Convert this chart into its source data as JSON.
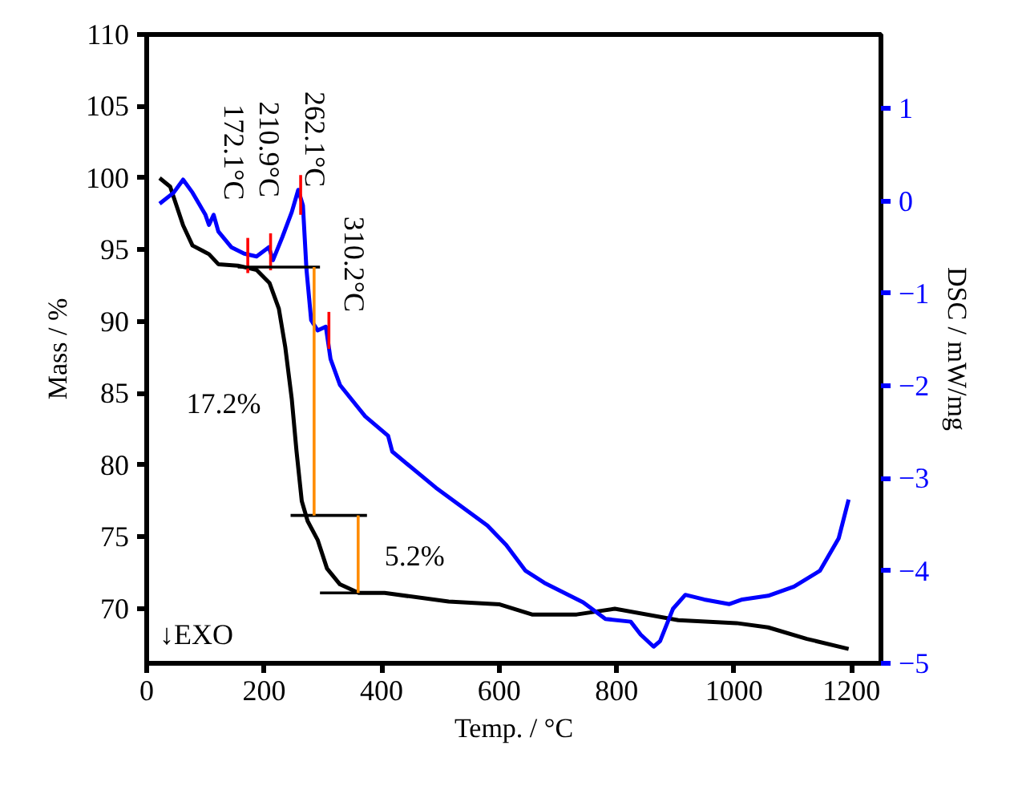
{
  "chart_data": {
    "type": "line",
    "xlabel": "Temp. / °C",
    "ylabel": "Mass / %",
    "y2label": "DSC / mW/mg",
    "xlim": [
      0,
      1250
    ],
    "xticks": [
      0,
      200,
      400,
      600,
      800,
      1000,
      1200
    ],
    "ylim": [
      66.2,
      110
    ],
    "yticks": [
      70,
      75,
      80,
      85,
      90,
      95,
      100,
      105,
      110
    ],
    "y2lim": [
      -5,
      1.8
    ],
    "y2ticks": [
      -5,
      -4,
      -3,
      -2,
      -1,
      0,
      1
    ],
    "grid": false,
    "marker": "none",
    "line_style": "solid",
    "series": [
      {
        "color": "#000000",
        "x": [
          22,
          40,
          62,
          78,
          106,
          122,
          155,
          187,
          209,
          225,
          236,
          247,
          255,
          264,
          274,
          291,
          307,
          329,
          361,
          405,
          514,
          601,
          656,
          732,
          797,
          905,
          1004,
          1058,
          1124,
          1195
        ],
        "values": [
          100.0,
          99.4,
          96.7,
          95.3,
          94.7,
          94.0,
          93.9,
          93.6,
          92.7,
          90.9,
          88.2,
          84.6,
          81.0,
          77.5,
          76.1,
          74.8,
          72.8,
          71.7,
          71.1,
          71.1,
          70.5,
          70.3,
          69.6,
          69.6,
          70.0,
          69.2,
          69.0,
          68.7,
          67.9,
          67.2
        ]
      },
      {
        "color": "#0000ff",
        "axis": "y2",
        "x": [
          22,
          46,
          62,
          78,
          100,
          106,
          114,
          122,
          144,
          166,
          187,
          208,
          215,
          231,
          247,
          258,
          266,
          272,
          280,
          291,
          305,
          313,
          329,
          372,
          411,
          418,
          492,
          580,
          612,
          645,
          677,
          743,
          781,
          824,
          841,
          863,
          874,
          896,
          917,
          949,
          992,
          1014,
          1058,
          1102,
          1146,
          1178,
          1195
        ],
        "values": [
          -0.03,
          0.09,
          0.23,
          0.09,
          -0.15,
          -0.26,
          -0.15,
          -0.33,
          -0.5,
          -0.57,
          -0.6,
          -0.5,
          -0.64,
          -0.39,
          -0.12,
          0.12,
          -0.05,
          -0.74,
          -1.29,
          -1.4,
          -1.36,
          -1.71,
          -1.99,
          -2.33,
          -2.54,
          -2.71,
          -3.1,
          -3.51,
          -3.72,
          -4.0,
          -4.13,
          -4.34,
          -4.52,
          -4.55,
          -4.69,
          -4.82,
          -4.76,
          -4.41,
          -4.26,
          -4.31,
          -4.36,
          -4.31,
          -4.27,
          -4.17,
          -4.0,
          -3.65,
          -3.23
        ]
      },
      {
        "color": "#ff0000",
        "axis": "y2",
        "x": [
          172.1,
          172.1
        ],
        "values": [
          -0.4,
          -0.78
        ]
      },
      {
        "color": "#ff0000",
        "axis": "y2",
        "x": [
          210.9,
          210.9
        ],
        "values": [
          -0.35,
          -0.75
        ]
      },
      {
        "color": "#ff0000",
        "axis": "y2",
        "x": [
          262.1,
          262.1
        ],
        "values": [
          0.28,
          -0.15
        ]
      },
      {
        "color": "#ff0000",
        "axis": "y2",
        "x": [
          310.2,
          310.2
        ],
        "values": [
          -1.2,
          -1.6
        ]
      },
      {
        "color": "#000000",
        "x": [
          155,
          295
        ],
        "values": [
          93.8,
          93.8
        ]
      },
      {
        "color": "#000000",
        "x": [
          245,
          375
        ],
        "values": [
          76.5,
          76.5
        ]
      },
      {
        "color": "#000000",
        "x": [
          295,
          375
        ],
        "values": [
          71.1,
          71.1
        ]
      },
      {
        "color": "#ff8c00",
        "x": [
          285,
          285
        ],
        "values": [
          93.8,
          76.5
        ]
      },
      {
        "color": "#ff8c00",
        "x": [
          360,
          360
        ],
        "values": [
          76.5,
          71.1
        ]
      }
    ],
    "annotations": [
      "172.1°C",
      "210.9°C",
      "262.1°C",
      "310.2°C",
      "17.2%",
      "5.2%",
      "↓EXO"
    ]
  }
}
